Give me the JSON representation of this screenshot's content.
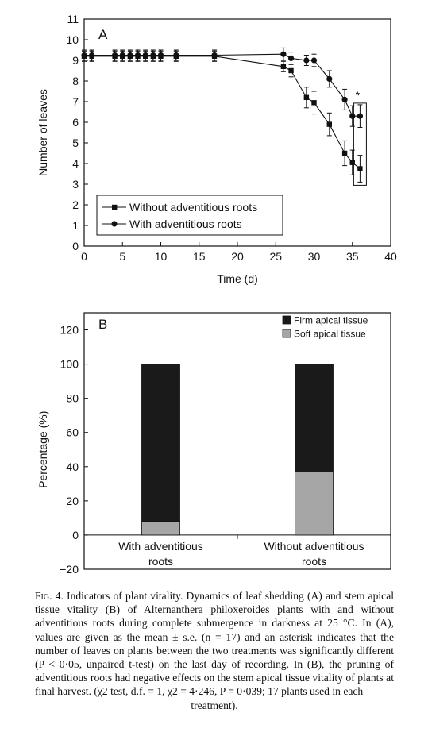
{
  "figure": {
    "caption": {
      "label": "Fig. 4.",
      "text": "Indicators of plant vitality. Dynamics of leaf shedding (A) and stem apical tissue vitality (B) of Alternanthera philoxeroides plants with and without adventitious roots during complete submergence in darkness at 25 °C. In (A), values are given as the mean ± s.e. (n = 17) and an asterisk indicates that the number of leaves on plants between the two treatments was significantly different (P < 0·05, unpaired t-test) on the last day of recording. In (B), the pruning of adventitious roots had negative effects on the stem apical tissue vitality of plants at final harvest. (χ2 test, d.f. = 1, χ2 = 4·246, P = 0·039; 17 plants used in each",
      "last_line": "treatment)."
    }
  },
  "chart_data": [
    {
      "type": "line",
      "panel": "A",
      "xlabel": "Time (d)",
      "ylabel": "Number of leaves",
      "xlim": [
        0,
        40
      ],
      "ylim": [
        0,
        11
      ],
      "xticks": [
        0,
        5,
        10,
        15,
        20,
        25,
        30,
        35,
        40
      ],
      "yticks": [
        0,
        1,
        2,
        3,
        4,
        5,
        6,
        7,
        8,
        9,
        10,
        11
      ],
      "legend_position": "bottom-left",
      "annotation": "*",
      "series": [
        {
          "name": "Without adventitious roots",
          "marker": "square",
          "x": [
            0,
            1,
            4,
            5,
            6,
            7,
            8,
            9,
            10,
            12,
            17,
            26,
            27,
            29,
            30,
            32,
            34,
            35,
            36
          ],
          "y": [
            9.2,
            9.2,
            9.2,
            9.2,
            9.2,
            9.2,
            9.2,
            9.2,
            9.2,
            9.2,
            9.2,
            8.7,
            8.5,
            7.2,
            6.95,
            5.9,
            4.5,
            4.05,
            3.75
          ],
          "err": [
            0.25,
            0.25,
            0.25,
            0.25,
            0.25,
            0.25,
            0.25,
            0.25,
            0.25,
            0.25,
            0.25,
            0.25,
            0.3,
            0.5,
            0.55,
            0.55,
            0.6,
            0.6,
            0.65
          ]
        },
        {
          "name": "With adventitious roots",
          "marker": "circle",
          "x": [
            0,
            1,
            4,
            5,
            6,
            7,
            8,
            9,
            10,
            12,
            17,
            26,
            27,
            29,
            30,
            32,
            34,
            35,
            36
          ],
          "y": [
            9.25,
            9.25,
            9.25,
            9.25,
            9.25,
            9.25,
            9.25,
            9.25,
            9.25,
            9.25,
            9.25,
            9.3,
            9.1,
            9.0,
            9.0,
            8.1,
            7.1,
            6.3,
            6.3
          ],
          "err": [
            0.25,
            0.25,
            0.25,
            0.25,
            0.25,
            0.25,
            0.25,
            0.25,
            0.25,
            0.25,
            0.25,
            0.3,
            0.3,
            0.25,
            0.3,
            0.4,
            0.5,
            0.5,
            0.55
          ]
        }
      ]
    },
    {
      "type": "bar",
      "stacked": true,
      "panel": "B",
      "ylabel": "Percentage (%)",
      "ylim": [
        -20,
        130
      ],
      "yticks": [
        -20,
        0,
        20,
        40,
        60,
        80,
        100,
        120
      ],
      "categories": [
        "With adventitious\nroots",
        "Without adventitious\nroots"
      ],
      "legend_position": "top-right",
      "series": [
        {
          "name": "Soft apical tissue",
          "color": "#a6a6a6",
          "values": [
            8,
            37
          ]
        },
        {
          "name": "Firm apical tissue",
          "color": "#1a1a1a",
          "values": [
            92,
            63
          ]
        }
      ]
    }
  ]
}
